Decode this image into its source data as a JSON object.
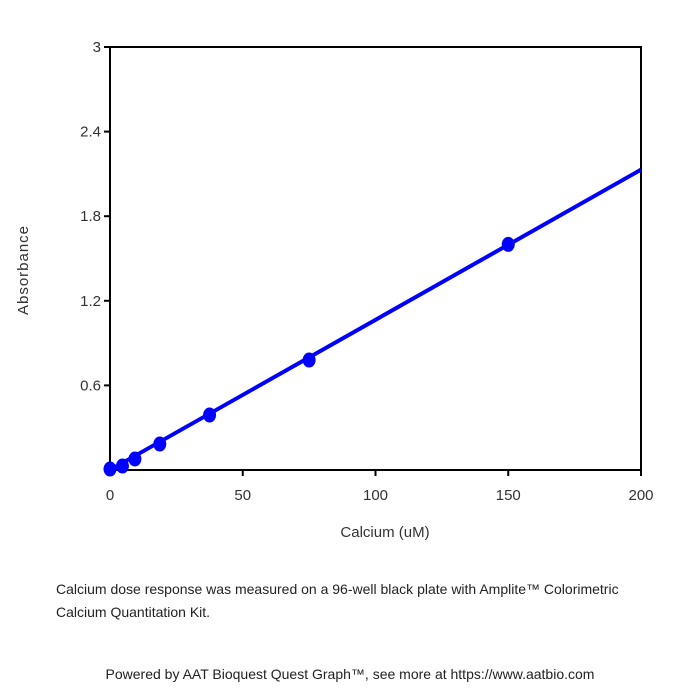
{
  "chart_data": {
    "type": "scatter",
    "x_label": "Calcium (uM)",
    "y_label": "Absorbance",
    "x": [
      0,
      4.6875,
      9.375,
      18.75,
      37.5,
      75,
      150
    ],
    "values": [
      0.007,
      0.028,
      0.078,
      0.184,
      0.39,
      0.78,
      1.6
    ],
    "color": "#0000ff",
    "fit": {
      "x": [
        0,
        200
      ],
      "y": [
        0,
        2.13
      ]
    },
    "xlim": [
      0,
      200
    ],
    "xticks": [
      0,
      50,
      100,
      150,
      200
    ],
    "ylim": [
      0,
      3
    ],
    "yticks": [
      0.6,
      1.2,
      1.8,
      2.4,
      3
    ],
    "grid": false
  },
  "caption": "Calcium dose response was measured on a 96-well black plate with Amplite™ Colorimetric Calcium Quantitation Kit.",
  "footer": "Powered by AAT Bioquest Quest Graph™, see more at https://www.aatbio.com"
}
